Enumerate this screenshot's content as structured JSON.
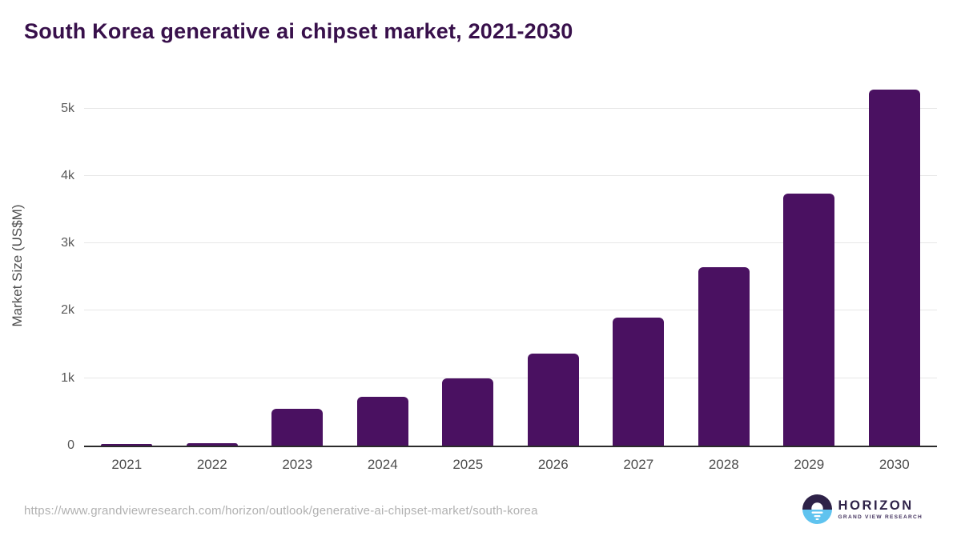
{
  "title": "South Korea generative ai chipset market, 2021-2030",
  "colors": {
    "title_text": "#38104b",
    "bar": "#4a1161",
    "axis_line": "#2b2b2b",
    "gridline": "#e7e7e7",
    "tick_text": "#585858",
    "x_label_text": "#4c4c4c",
    "y_axis_title_text": "#4d4d4d",
    "url_text": "#b1b1b1",
    "logo_purple": "#2e2248",
    "logo_blue": "#5fc3ef"
  },
  "chart_data": {
    "type": "bar",
    "title": "South Korea generative ai chipset market, 2021-2030",
    "categories": [
      "2021",
      "2022",
      "2023",
      "2024",
      "2025",
      "2026",
      "2027",
      "2028",
      "2029",
      "2030"
    ],
    "values": [
      20,
      40,
      545,
      720,
      1000,
      1370,
      1900,
      2650,
      3740,
      5280
    ],
    "series_name": "Market Size",
    "xlabel": "",
    "ylabel": "Market Size (US$M)",
    "yticks": [
      {
        "value": 0,
        "label": "0"
      },
      {
        "value": 1000,
        "label": "1k"
      },
      {
        "value": 2000,
        "label": "2k"
      },
      {
        "value": 3000,
        "label": "3k"
      },
      {
        "value": 4000,
        "label": "4k"
      },
      {
        "value": 5000,
        "label": "5k"
      }
    ],
    "ylim": [
      0,
      5400
    ],
    "grid": true,
    "legend": false,
    "bar_color": "#4a1161"
  },
  "footer": {
    "source_url": "https://www.grandviewresearch.com/horizon/outlook/generative-ai-chipset-market/south-korea",
    "logo": {
      "brand": "HORIZON",
      "subbrand": "GRAND VIEW RESEARCH"
    }
  }
}
